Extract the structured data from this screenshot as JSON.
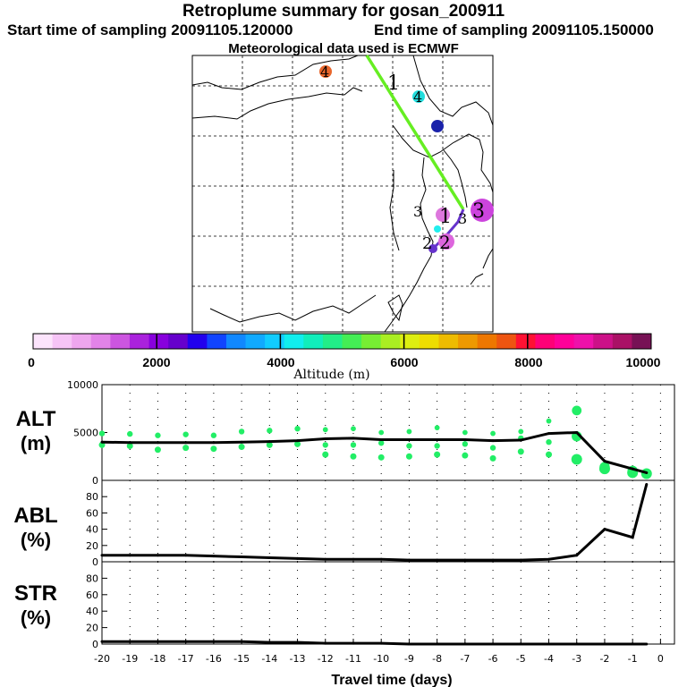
{
  "header": {
    "title": "Retroplume summary for gosan_200911",
    "start_label": "Start time of sampling 20091105.120000",
    "end_label": "End time of sampling 20091105.150000",
    "met_label": "Meteorological data used is ECMWF"
  },
  "colors": {
    "trajectory_old": "#66ee22",
    "trajectory_recent": "#6633cc",
    "scatter": "#22ee66",
    "line": "#000000"
  },
  "map": {
    "markers": [
      {
        "label": "4",
        "color": "#e8662c"
      },
      {
        "label": "4",
        "color": "#22dddd"
      },
      {
        "label": "",
        "color": "#1a22aa"
      },
      {
        "label": "1",
        "color": "#000000"
      },
      {
        "label": "3",
        "color": "#000000"
      },
      {
        "label": "1",
        "color": "#dd77dd"
      },
      {
        "label": "3",
        "color": "#cc44dd"
      },
      {
        "label": "2",
        "color": "#dd66dd"
      },
      {
        "label": "2",
        "color": "#000000"
      },
      {
        "label": "3",
        "color": "#000000"
      }
    ]
  },
  "colorbar": {
    "label": "Altitude (m)",
    "ticks": [
      "0",
      "2000",
      "4000",
      "6000",
      "8000",
      "10000"
    ],
    "colors": [
      "#fce4fc",
      "#f6c4f6",
      "#eea6ee",
      "#e283e8",
      "#cc55e0",
      "#aa22dd",
      "#8800dd",
      "#6600cc",
      "#2200ee",
      "#1144ff",
      "#1188ff",
      "#11aaff",
      "#11ccff",
      "#11eeee",
      "#11eebb",
      "#22ee88",
      "#44ee55",
      "#77ee33",
      "#aaee22",
      "#ddee11",
      "#eedd00",
      "#eebb00",
      "#ee9900",
      "#ee7700",
      "#ee5511",
      "#ff1133",
      "#ff0077",
      "#ff0099",
      "#ee11aa",
      "#cc1188",
      "#aa1166",
      "#771155"
    ]
  },
  "chart_data": [
    {
      "type": "line",
      "title": "ALT (m)",
      "ylabel": "ALT (m)",
      "ylim": [
        0,
        10000
      ],
      "yticks": [
        "0",
        "5000",
        "10000"
      ],
      "x": [
        -20,
        -19,
        -18,
        -17,
        -16,
        -15,
        -14,
        -13,
        -12,
        -11,
        -10,
        -9,
        -8,
        -7,
        -6,
        -5,
        -4,
        -3,
        -2,
        -1,
        -0.5
      ],
      "values": [
        4000,
        3950,
        3950,
        3950,
        3950,
        4000,
        4050,
        4150,
        4350,
        4400,
        4250,
        4250,
        4250,
        4250,
        4150,
        4200,
        4900,
        5000,
        2000,
        1200,
        800
      ],
      "scatter": [
        {
          "x": -20,
          "y": [
            3700,
            4900
          ]
        },
        {
          "x": -19,
          "y": [
            3600,
            4850
          ]
        },
        {
          "x": -18,
          "y": [
            3200,
            4700
          ]
        },
        {
          "x": -17,
          "y": [
            3400,
            4800
          ]
        },
        {
          "x": -16,
          "y": [
            3300,
            4700
          ]
        },
        {
          "x": -15,
          "y": [
            3500,
            5100
          ]
        },
        {
          "x": -14,
          "y": [
            3700,
            5200
          ]
        },
        {
          "x": -13,
          "y": [
            3800,
            5400
          ]
        },
        {
          "x": -12,
          "y": [
            2700,
            3700,
            5300
          ]
        },
        {
          "x": -11,
          "y": [
            2500,
            3700,
            5400
          ]
        },
        {
          "x": -10,
          "y": [
            2400,
            3900,
            5000
          ]
        },
        {
          "x": -9,
          "y": [
            2500,
            3600,
            5100
          ]
        },
        {
          "x": -8,
          "y": [
            2700,
            3600,
            5500
          ]
        },
        {
          "x": -7,
          "y": [
            2600,
            3800,
            5000
          ]
        },
        {
          "x": -6,
          "y": [
            2300,
            3400,
            4900
          ]
        },
        {
          "x": -5,
          "y": [
            3000,
            4400,
            5100
          ]
        },
        {
          "x": -4,
          "y": [
            2700,
            4000,
            6200
          ]
        },
        {
          "x": -3,
          "y": [
            2200,
            4600,
            7300
          ]
        },
        {
          "x": -2,
          "y": [
            1200,
            1400
          ]
        },
        {
          "x": -1,
          "y": [
            800,
            1000
          ]
        },
        {
          "x": -0.5,
          "y": [
            700
          ]
        }
      ]
    },
    {
      "type": "line",
      "title": "ABL (%)",
      "ylabel": "ABL (%)",
      "ylim": [
        0,
        100
      ],
      "yticks": [
        "0",
        "20",
        "40",
        "60",
        "80"
      ],
      "x": [
        -20,
        -19,
        -18,
        -17,
        -16,
        -15,
        -14,
        -13,
        -12,
        -11,
        -10,
        -9,
        -8,
        -7,
        -6,
        -5,
        -4,
        -3,
        -2,
        -1,
        -0.5
      ],
      "values": [
        8,
        8,
        8,
        8,
        7,
        6,
        5,
        4,
        3,
        3,
        3,
        2,
        2,
        2,
        2,
        2,
        3,
        8,
        40,
        30,
        95
      ]
    },
    {
      "type": "line",
      "title": "STR (%)",
      "ylabel": "STR (%)",
      "ylim": [
        0,
        100
      ],
      "yticks": [
        "0",
        "20",
        "40",
        "60",
        "80"
      ],
      "x": [
        -20,
        -19,
        -18,
        -17,
        -16,
        -15,
        -14,
        -13,
        -12,
        -11,
        -10,
        -9,
        -8,
        -7,
        -6,
        -5,
        -4,
        -3,
        -2,
        -1,
        -0.5
      ],
      "values": [
        3,
        3,
        3,
        3,
        3,
        3,
        2,
        2,
        1,
        1,
        1,
        0,
        0,
        0,
        0,
        0,
        0,
        0,
        0,
        0,
        0
      ],
      "xlabel": "Travel time (days)",
      "xticks": [
        "-20",
        "-19",
        "-18",
        "-17",
        "-16",
        "-15",
        "-14",
        "-13",
        "-12",
        "-11",
        "-10",
        "-9",
        "-8",
        "-7",
        "-6",
        "-5",
        "-4",
        "-3",
        "-2",
        "-1",
        "0"
      ]
    }
  ]
}
